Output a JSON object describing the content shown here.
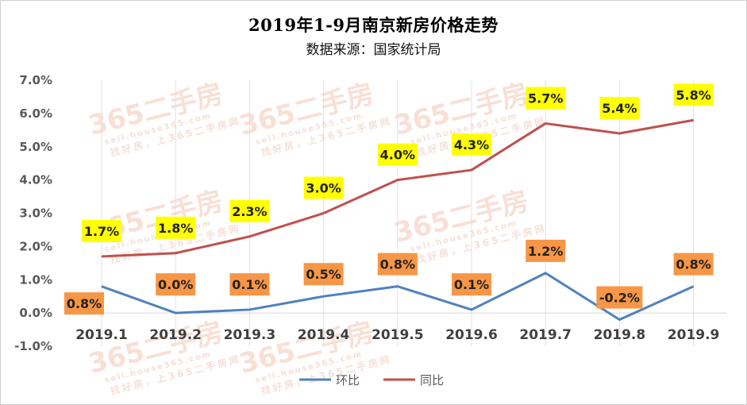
{
  "chart_data": {
    "type": "line",
    "title": "2019年1-9月南京新房价格走势",
    "subtitle": "数据来源：国家统计局",
    "categories": [
      "2019.1",
      "2019.2",
      "2019.3",
      "2019.4",
      "2019.5",
      "2019.6",
      "2019.7",
      "2019.8",
      "2019.9"
    ],
    "series": [
      {
        "name": "环比",
        "color": "#4f81bd",
        "label_bg": "#f79646",
        "values": [
          0.8,
          0.0,
          0.1,
          0.5,
          0.8,
          0.1,
          1.2,
          -0.2,
          0.8
        ],
        "labels": [
          "0.8%",
          "0.0%",
          "0.1%",
          "0.5%",
          "0.8%",
          "0.1%",
          "1.2%",
          "-0.2%",
          "0.8%"
        ]
      },
      {
        "name": "同比",
        "color": "#c0504d",
        "label_bg": "#ffff00",
        "values": [
          1.7,
          1.8,
          2.3,
          3.0,
          4.0,
          4.3,
          5.7,
          5.4,
          5.8
        ],
        "labels": [
          "1.7%",
          "1.8%",
          "2.3%",
          "3.0%",
          "4.0%",
          "4.3%",
          "5.7%",
          "5.4%",
          "5.8%"
        ]
      }
    ],
    "yticks": [
      "7.0%",
      "6.0%",
      "5.0%",
      "4.0%",
      "3.0%",
      "2.0%",
      "1.0%",
      "0.0%",
      "-1.0%"
    ],
    "ylim": [
      -1.0,
      7.0
    ],
    "grid": "vertical",
    "legend": "bottom-center",
    "watermark": {
      "logo": "365二手房",
      "url": "sell.house365.com",
      "slogan": "找好房，上365二手房网"
    }
  }
}
